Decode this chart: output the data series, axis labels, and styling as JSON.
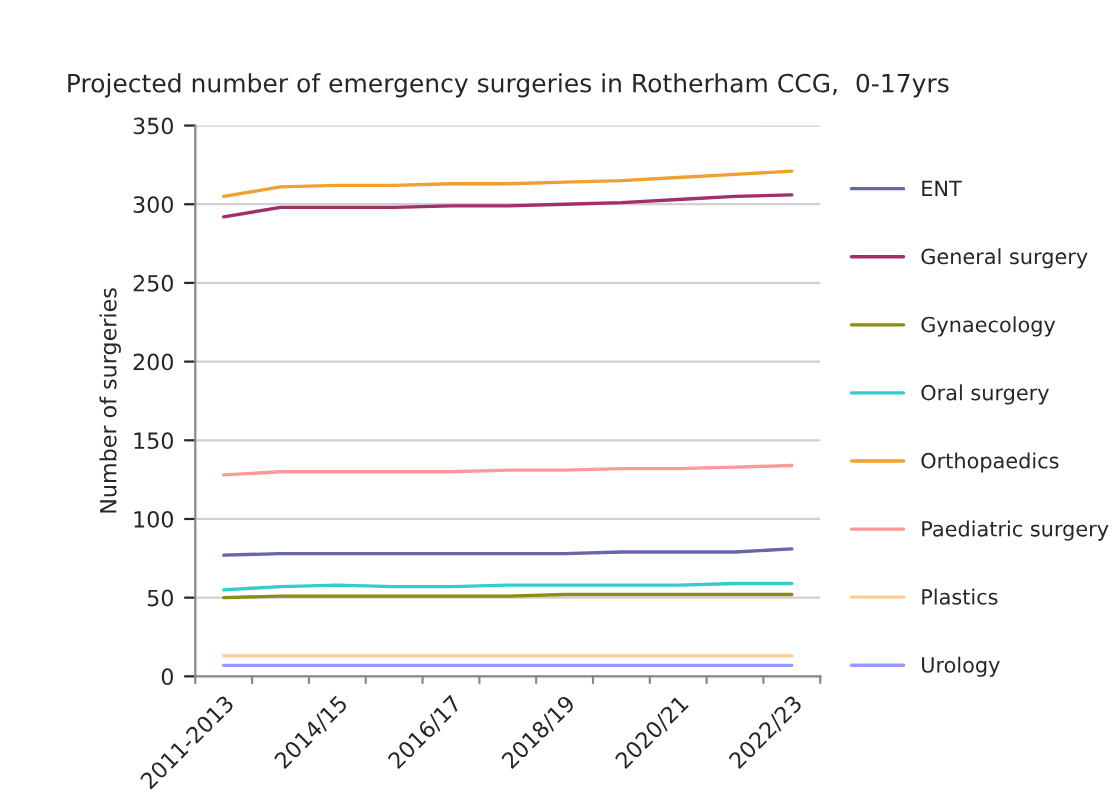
{
  "chart_data": {
    "type": "line",
    "title": "Projected number of emergency surgeries in Rotherham CCG,  0-17yrs",
    "ylabel": "Number of surgeries",
    "categories": [
      "2011-2013",
      null,
      "2014/15",
      null,
      "2016/17",
      null,
      "2018/19",
      null,
      "2020/21",
      null,
      "2022/23"
    ],
    "series": [
      {
        "name": "ENT",
        "color": "#6666aa",
        "values": [
          77,
          78,
          78,
          78,
          78,
          78,
          78,
          79,
          79,
          79,
          81
        ]
      },
      {
        "name": "General surgery",
        "color": "#a0306a",
        "values": [
          292,
          298,
          298,
          298,
          299,
          299,
          300,
          301,
          303,
          305,
          306
        ]
      },
      {
        "name": "Gynaecology",
        "color": "#8c8c1a",
        "values": [
          50,
          51,
          51,
          51,
          51,
          51,
          52,
          52,
          52,
          52,
          52
        ]
      },
      {
        "name": "Oral surgery",
        "color": "#33cccc",
        "values": [
          55,
          57,
          58,
          57,
          57,
          58,
          58,
          58,
          58,
          59,
          59
        ]
      },
      {
        "name": "Orthopaedics",
        "color": "#f0a030",
        "values": [
          305,
          311,
          312,
          312,
          313,
          313,
          314,
          315,
          317,
          319,
          321
        ]
      },
      {
        "name": "Paediatric surgery",
        "color": "#ff9999",
        "values": [
          128,
          130,
          130,
          130,
          130,
          131,
          131,
          132,
          132,
          133,
          134
        ]
      },
      {
        "name": "Plastics",
        "color": "#ffcc99",
        "values": [
          13,
          13,
          13,
          13,
          13,
          13,
          13,
          13,
          13,
          13,
          13
        ]
      },
      {
        "name": "Urology",
        "color": "#9999ff",
        "values": [
          7,
          7,
          7,
          7,
          7,
          7,
          7,
          7,
          7,
          7,
          7
        ]
      }
    ],
    "ylim": [
      0,
      350
    ],
    "yticks": [
      0,
      50,
      100,
      150,
      200,
      250,
      300,
      350
    ],
    "grid": "y",
    "legend": "right",
    "marker": "none",
    "line_style": "solid"
  }
}
